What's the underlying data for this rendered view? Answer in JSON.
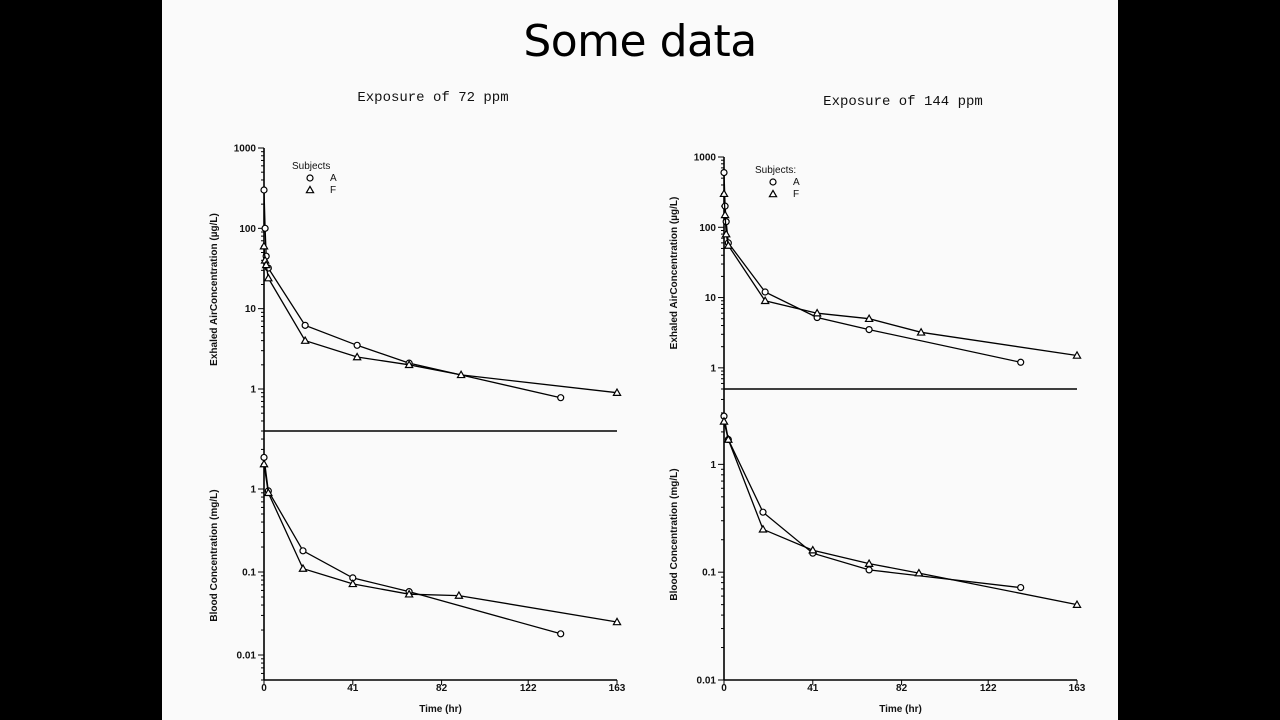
{
  "slide": {
    "title": "Some data"
  },
  "chart_data": [
    {
      "type": "line",
      "caption": "Exposure of 72 ppm",
      "ylabel": "Exhaled AirConcentration (µg/L)",
      "yscale": "log",
      "ylim": [
        0.3,
        1000
      ],
      "yticks": [
        {
          "v": 1000,
          "label": "1000"
        },
        {
          "v": 100,
          "label": "100"
        },
        {
          "v": 10,
          "label": "10"
        },
        {
          "v": 1,
          "label": "1"
        }
      ],
      "xlim": [
        0,
        163
      ],
      "legend": {
        "title": "Subjects",
        "placement": "top-left",
        "entries": [
          {
            "marker": "circle",
            "label": "A"
          },
          {
            "marker": "triangle",
            "label": "F"
          }
        ]
      },
      "series": [
        {
          "name": "A",
          "marker": "circle",
          "x": [
            0,
            0.5,
            1,
            2,
            19,
            43,
            67,
            137
          ],
          "y": [
            300,
            100,
            45,
            32,
            6.2,
            3.5,
            2.1,
            0.78
          ]
        },
        {
          "name": "F",
          "marker": "triangle",
          "x": [
            0,
            0.5,
            1,
            2,
            19,
            43,
            67,
            91,
            163
          ],
          "y": [
            60,
            40,
            35,
            24,
            4,
            2.5,
            2,
            1.5,
            0.9
          ]
        }
      ]
    },
    {
      "type": "line",
      "ylabel": "Blood Concentration (mg/L)",
      "xlabel": "Time (hr)",
      "yscale": "log",
      "ylim": [
        0.005,
        5
      ],
      "yticks": [
        {
          "v": 1,
          "label": "1"
        },
        {
          "v": 0.1,
          "label": "0.1"
        },
        {
          "v": 0.01,
          "label": "0.01"
        }
      ],
      "xlim": [
        0,
        163
      ],
      "xticks": [
        {
          "v": 0,
          "label": "0"
        },
        {
          "v": 41,
          "label": "41"
        },
        {
          "v": 82,
          "label": "82"
        },
        {
          "v": 122,
          "label": "122"
        },
        {
          "v": 163,
          "label": "163"
        }
      ],
      "series": [
        {
          "name": "A",
          "marker": "circle",
          "x": [
            0,
            2,
            18,
            41,
            67,
            137
          ],
          "y": [
            2.4,
            0.95,
            0.18,
            0.085,
            0.058,
            0.018
          ]
        },
        {
          "name": "F",
          "marker": "triangle",
          "x": [
            0,
            2,
            18,
            41,
            67,
            90,
            163
          ],
          "y": [
            2.0,
            0.9,
            0.11,
            0.072,
            0.054,
            0.052,
            0.025
          ]
        }
      ]
    },
    {
      "type": "line",
      "caption": "Exposure of 144 ppm",
      "ylabel": "Exhaled AirConcentration (µg/L)",
      "yscale": "log",
      "ylim": [
        0.5,
        1000
      ],
      "yticks": [
        {
          "v": 1000,
          "label": "1000"
        },
        {
          "v": 100,
          "label": "100"
        },
        {
          "v": 10,
          "label": "10"
        },
        {
          "v": 1,
          "label": "1"
        }
      ],
      "xlim": [
        0,
        163
      ],
      "legend": {
        "title": "Subjects:",
        "placement": "top-left",
        "entries": [
          {
            "marker": "circle",
            "label": "A"
          },
          {
            "marker": "triangle",
            "label": "F"
          }
        ]
      },
      "series": [
        {
          "name": "A",
          "marker": "circle",
          "x": [
            0,
            0.5,
            1,
            2,
            19,
            43,
            67,
            137
          ],
          "y": [
            600,
            200,
            120,
            60,
            12,
            5.2,
            3.5,
            1.2
          ]
        },
        {
          "name": "F",
          "marker": "triangle",
          "x": [
            0,
            0.5,
            1,
            2,
            19,
            43,
            67,
            91,
            163
          ],
          "y": [
            300,
            150,
            80,
            55,
            9,
            6,
            5,
            3.2,
            1.5
          ]
        }
      ]
    },
    {
      "type": "line",
      "ylabel": "Blood Concentration (mg/L)",
      "xlabel": "Time (hr)",
      "yscale": "log",
      "ylim": [
        0.01,
        5
      ],
      "yticks": [
        {
          "v": 1,
          "label": "1"
        },
        {
          "v": 0.1,
          "label": "0.1"
        },
        {
          "v": 0.01,
          "label": "0.01"
        }
      ],
      "xlim": [
        0,
        163
      ],
      "xticks": [
        {
          "v": 0,
          "label": "0"
        },
        {
          "v": 41,
          "label": "41"
        },
        {
          "v": 82,
          "label": "82"
        },
        {
          "v": 122,
          "label": "122"
        },
        {
          "v": 163,
          "label": "163"
        }
      ],
      "series": [
        {
          "name": "A",
          "marker": "circle",
          "x": [
            0,
            2,
            18,
            41,
            67,
            137
          ],
          "y": [
            2.8,
            1.7,
            0.36,
            0.15,
            0.105,
            0.072
          ]
        },
        {
          "name": "F",
          "marker": "triangle",
          "x": [
            0,
            2,
            18,
            41,
            67,
            90,
            163
          ],
          "y": [
            2.5,
            1.7,
            0.25,
            0.16,
            0.12,
            0.098,
            0.05
          ]
        }
      ]
    }
  ]
}
